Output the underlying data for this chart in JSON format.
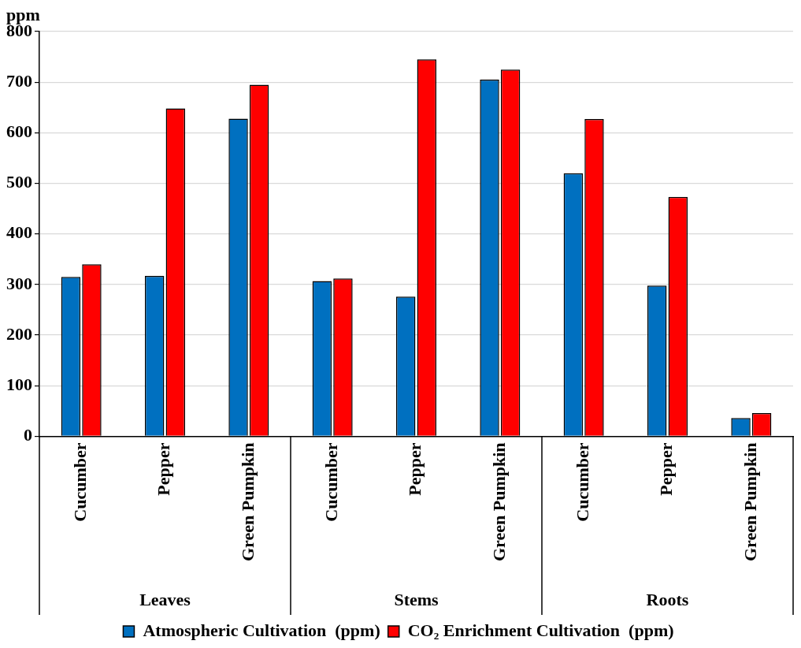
{
  "chart_data": {
    "type": "bar",
    "ylabel": "ppm",
    "categories": [
      "Cucumber",
      "Pepper",
      "Green Pumpkin",
      "Cucumber",
      "Pepper",
      "Green Pumpkin",
      "Cucumber",
      "Pepper",
      "Green Pumpkin"
    ],
    "annotations": [
      "Leaves",
      "Stems",
      "Roots"
    ],
    "series": [
      {
        "name": "Atmospheric Cultivation  (ppm)",
        "color": "#0070c0",
        "values": [
          315,
          317,
          628,
          307,
          276,
          705,
          520,
          298,
          36
        ]
      },
      {
        "name": "CO₂ Enrichment Cultivation  (ppm)",
        "color": "#ff0000",
        "values": [
          340,
          648,
          695,
          312,
          745,
          725,
          627,
          473,
          46
        ]
      }
    ],
    "ylim": [
      0,
      800
    ],
    "yticks": [
      0,
      100,
      200,
      300,
      400,
      500,
      600,
      700,
      800
    ],
    "grid": "y",
    "legend": "bottom"
  }
}
